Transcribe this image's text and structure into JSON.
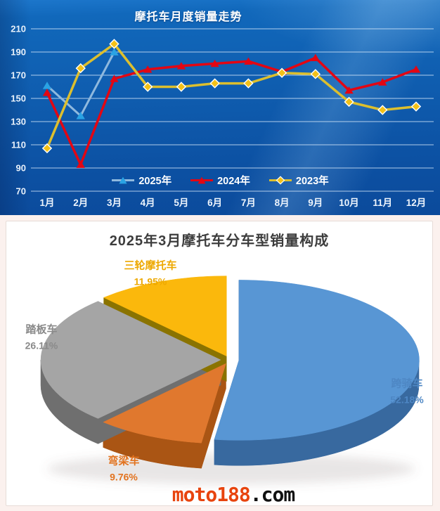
{
  "chart_data": [
    {
      "type": "line",
      "title": "摩托车月度销量走势",
      "x_labels": [
        "1月",
        "2月",
        "3月",
        "4月",
        "5月",
        "6月",
        "7月",
        "8月",
        "9月",
        "10月",
        "11月",
        "12月"
      ],
      "y_ticks": [
        210,
        190,
        170,
        150,
        130,
        110,
        90,
        70
      ],
      "ylim": [
        70,
        210
      ],
      "grid": true,
      "legend_position": "inside-bottom-center",
      "series": [
        {
          "name": "2025年",
          "marker": "triangle",
          "line_color": "#8fb9de",
          "marker_color": "#2aa3e4",
          "values": [
            161,
            135,
            190
          ]
        },
        {
          "name": "2024年",
          "marker": "triangle",
          "line_color": "#e30613",
          "marker_color": "#e30613",
          "values": [
            155,
            93,
            167,
            175,
            178,
            180,
            182,
            173,
            185,
            157,
            164,
            175
          ]
        },
        {
          "name": "2023年",
          "marker": "diamond",
          "line_color": "#dcbf2e",
          "marker_color": "#f3c118",
          "values": [
            107,
            176,
            197,
            160,
            160,
            163,
            163,
            172,
            171,
            147,
            140,
            143
          ]
        }
      ]
    },
    {
      "type": "pie",
      "title": "2025年3月摩托车分车型销量构成",
      "style": "3d-exploded",
      "start_angle_deg": 0,
      "direction": "clockwise",
      "slices": [
        {
          "label": "跨骑车",
          "value": 52.18,
          "pct_label": "52.18%",
          "color": "#5896d4",
          "side_color": "#38699f",
          "label_color": "#4e87c4"
        },
        {
          "label": "弯梁车",
          "value": 9.76,
          "pct_label": "9.76%",
          "color": "#e0782e",
          "side_color": "#aa5514",
          "label_color": "#e2731f"
        },
        {
          "label": "踏板车",
          "value": 26.11,
          "pct_label": "26.11%",
          "color": "#a5a5a5",
          "side_color": "#6f6f6f",
          "label_color": "#8a8a8a"
        },
        {
          "label": "三轮摩托车",
          "value": 11.95,
          "pct_label": "11.95%",
          "color": "#fbb80c",
          "side_color": "#8a7300",
          "label_color": "#eda800"
        }
      ]
    }
  ],
  "footer": {
    "logo_main": "moto188",
    "logo_suffix": ".com",
    "logo_main_color": "#e8440e"
  }
}
